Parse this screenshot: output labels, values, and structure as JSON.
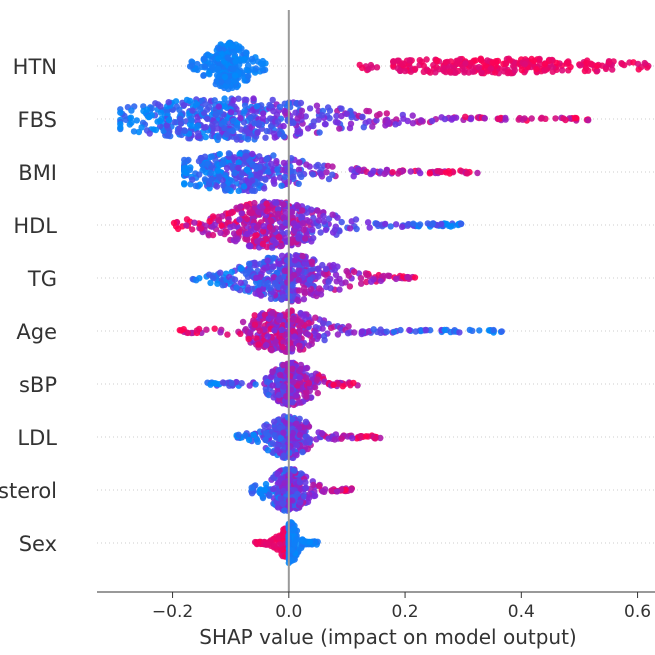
{
  "chart_data": {
    "type": "scatter",
    "subtype": "shap-beeswarm",
    "title": "",
    "xlabel": "SHAP value (impact on model output)",
    "ylabel": "",
    "xlim": [
      -0.33,
      0.63
    ],
    "xticks": [
      {
        "value": -0.2,
        "label": "−0.2"
      },
      {
        "value": 0.0,
        "label": "0.0"
      },
      {
        "value": 0.2,
        "label": "0.2"
      },
      {
        "value": 0.4,
        "label": "0.4"
      },
      {
        "value": 0.6,
        "label": "0.6"
      }
    ],
    "zero_line": 0.0,
    "color_low": "#008bfb",
    "color_high": "#ff0052",
    "features": [
      {
        "name": "HTN",
        "min": -0.17,
        "max": 0.63,
        "segments": [
          {
            "from": -0.17,
            "to": -0.04,
            "center": -0.105,
            "peak": 22,
            "spread": 0.032,
            "fmin": 0.0,
            "fmax": 0.12,
            "n": 260
          },
          {
            "from": 0.12,
            "to": 0.155,
            "center": 0.14,
            "peak": 3,
            "spread": 0.02,
            "fmin": 0.85,
            "fmax": 1.0,
            "n": 8
          },
          {
            "from": 0.18,
            "to": 0.63,
            "center": 0.35,
            "peak": 6,
            "spread": 0.2,
            "fmin": 0.85,
            "fmax": 1.0,
            "n": 260
          }
        ]
      },
      {
        "name": "FBS",
        "min": -0.29,
        "max": 0.52,
        "segments": [
          {
            "from": -0.29,
            "to": 0.52,
            "center": -0.1,
            "peak": 20,
            "spread": 0.16,
            "fmin": 0.0,
            "fmax": 1.0,
            "n": 560,
            "gradient": true
          }
        ]
      },
      {
        "name": "BMI",
        "min": -0.18,
        "max": 0.33,
        "segments": [
          {
            "from": -0.18,
            "to": 0.33,
            "center": -0.08,
            "peak": 18,
            "spread": 0.1,
            "fmin": 0.0,
            "fmax": 1.0,
            "n": 420,
            "gradient": true
          }
        ]
      },
      {
        "name": "HDL",
        "min": -0.21,
        "max": 0.3,
        "segments": [
          {
            "from": -0.21,
            "to": 0.3,
            "center": -0.03,
            "peak": 22,
            "spread": 0.08,
            "fmin": 0.0,
            "fmax": 1.0,
            "n": 470,
            "gradient": true,
            "reverse": true
          }
        ]
      },
      {
        "name": "TG",
        "min": -0.17,
        "max": 0.23,
        "segments": [
          {
            "from": -0.17,
            "to": 0.23,
            "center": 0.0,
            "peak": 22,
            "spread": 0.07,
            "fmin": 0.0,
            "fmax": 1.0,
            "n": 440,
            "gradient": true
          }
        ]
      },
      {
        "name": "Age",
        "min": -0.19,
        "max": 0.37,
        "segments": [
          {
            "from": -0.19,
            "to": 0.37,
            "center": -0.01,
            "peak": 20,
            "spread": 0.06,
            "fmin": 0.0,
            "fmax": 1.0,
            "n": 380,
            "gradient": true,
            "reverse": true
          }
        ]
      },
      {
        "name": "sBP",
        "min": -0.14,
        "max": 0.12,
        "segments": [
          {
            "from": -0.14,
            "to": 0.12,
            "center": 0.005,
            "peak": 20,
            "spread": 0.035,
            "fmin": 0.0,
            "fmax": 1.0,
            "n": 300,
            "gradient": true
          }
        ]
      },
      {
        "name": "LDL",
        "min": -0.09,
        "max": 0.16,
        "segments": [
          {
            "from": -0.09,
            "to": 0.16,
            "center": 0.0,
            "peak": 20,
            "spread": 0.035,
            "fmin": 0.0,
            "fmax": 1.0,
            "n": 300,
            "gradient": true
          }
        ]
      },
      {
        "name": "sterol",
        "min": -0.07,
        "max": 0.11,
        "segments": [
          {
            "from": -0.07,
            "to": 0.11,
            "center": 0.0,
            "peak": 20,
            "spread": 0.03,
            "fmin": 0.0,
            "fmax": 1.0,
            "n": 290,
            "gradient": true
          }
        ]
      },
      {
        "name": "Sex",
        "min": -0.06,
        "max": 0.05,
        "segments": [
          {
            "from": -0.06,
            "to": 0.0,
            "center": -0.005,
            "peak": 13,
            "spread": 0.012,
            "fmin": 0.85,
            "fmax": 1.0,
            "n": 150
          },
          {
            "from": 0.0,
            "to": 0.05,
            "center": 0.004,
            "peak": 20,
            "spread": 0.01,
            "fmin": 0.0,
            "fmax": 0.12,
            "n": 160
          }
        ]
      }
    ]
  }
}
